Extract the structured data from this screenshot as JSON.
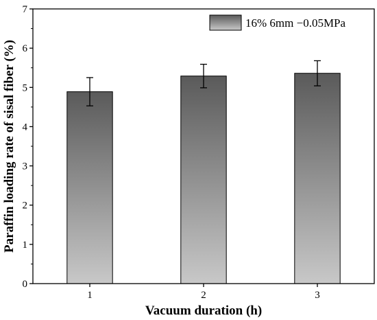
{
  "chart_data": {
    "type": "bar",
    "categories": [
      "1",
      "2",
      "3"
    ],
    "series": [
      {
        "name": "16% 6mm −0.05MPa",
        "values": [
          4.89,
          5.29,
          5.36
        ],
        "errors": [
          0.36,
          0.3,
          0.32
        ]
      }
    ],
    "xlabel": "Vacuum duration (h)",
    "ylabel": "Paraffin loading rate of sisal fiber (%)",
    "ylim": [
      0,
      7
    ],
    "yticks": [
      "0",
      "1",
      "2",
      "3",
      "4",
      "5",
      "6",
      "7"
    ],
    "grid": false,
    "legend": "top-right",
    "bar_gradient": {
      "top": "#5a5a5a",
      "bottom": "#c8c8c8"
    }
  }
}
